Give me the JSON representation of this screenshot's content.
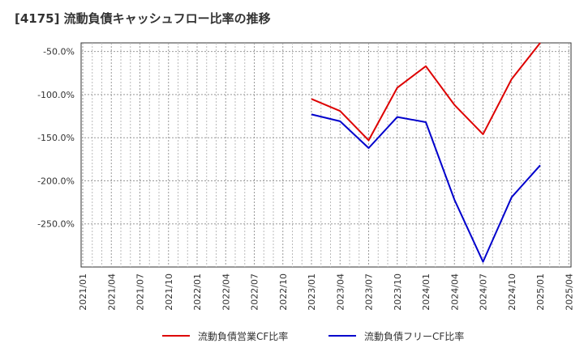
{
  "chart_data": {
    "type": "line",
    "title": "[4175]  流動負債キャッシュフロー比率の推移",
    "x": [
      "2021/01",
      "2021/04",
      "2021/07",
      "2021/10",
      "2022/01",
      "2022/04",
      "2022/07",
      "2022/10",
      "2023/01",
      "2023/04",
      "2023/07",
      "2023/10",
      "2024/01",
      "2024/04",
      "2024/07",
      "2024/10",
      "2025/01",
      "2025/04"
    ],
    "ylim": [
      -300,
      -40
    ],
    "yticks": [
      -50,
      -100,
      -150,
      -200,
      -250
    ],
    "ytick_labels": [
      "-50.0%",
      "-100.0%",
      "-150.0%",
      "-200.0%",
      "-250.0%"
    ],
    "grid": true,
    "legend_position": "bottom",
    "series": [
      {
        "name": "流動負債営業CF比率",
        "color": "#dd0000",
        "values": [
          null,
          null,
          null,
          null,
          null,
          null,
          null,
          null,
          -105,
          -119,
          -153,
          -92,
          -67,
          -112,
          -146,
          -82,
          -40,
          null
        ]
      },
      {
        "name": "流動負債フリーCF比率",
        "color": "#0000cc",
        "values": [
          null,
          null,
          null,
          null,
          null,
          null,
          null,
          null,
          -123,
          -131,
          -162,
          -126,
          -132,
          -222,
          -294,
          -219,
          -182,
          null
        ]
      }
    ]
  }
}
